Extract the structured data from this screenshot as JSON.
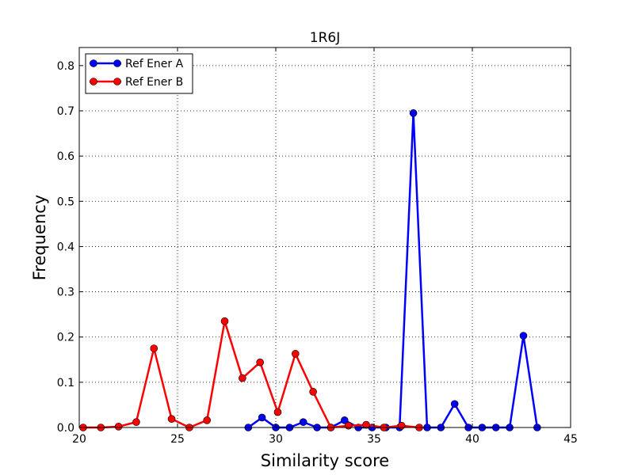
{
  "chart_data": {
    "type": "line",
    "title": "1R6J",
    "xlabel": "Similarity score",
    "ylabel": "Frequency",
    "xlim": [
      20,
      45
    ],
    "ylim": [
      0,
      0.84
    ],
    "xticks": [
      20,
      25,
      30,
      35,
      40,
      45
    ],
    "yticks": [
      0.0,
      0.1,
      0.2,
      0.3,
      0.4,
      0.5,
      0.6,
      0.7,
      0.8
    ],
    "xtick_labels": [
      "20",
      "25",
      "30",
      "35",
      "40",
      "45"
    ],
    "ytick_labels": [
      "0.0",
      "0.1",
      "0.2",
      "0.3",
      "0.4",
      "0.5",
      "0.6",
      "0.7",
      "0.8"
    ],
    "grid": true,
    "legend_position": "top-left",
    "series": [
      {
        "name": "Ref Ener A",
        "color": "#0000ff",
        "x": [
          28.6,
          29.3,
          30.0,
          30.7,
          31.4,
          32.1,
          32.8,
          33.5,
          34.2,
          34.9,
          35.6,
          36.3,
          37.0,
          37.7,
          38.4,
          39.1,
          39.8,
          40.5,
          41.2,
          41.9,
          42.6,
          43.3
        ],
        "y": [
          0.0,
          0.022,
          0.0,
          0.0,
          0.012,
          0.0,
          0.0,
          0.016,
          0.0,
          0.0,
          0.0,
          0.0,
          0.695,
          0.0,
          0.0,
          0.052,
          0.0,
          0.0,
          0.0,
          0.0,
          0.203,
          0.0
        ]
      },
      {
        "name": "Ref Ener B",
        "color": "#ff0000",
        "x": [
          20.2,
          21.1,
          22.0,
          22.9,
          23.8,
          24.7,
          25.6,
          26.5,
          27.4,
          28.3,
          29.2,
          30.1,
          31.0,
          31.9,
          32.8,
          33.7,
          34.6,
          35.5,
          36.4,
          37.3
        ],
        "y": [
          0.0,
          0.0,
          0.002,
          0.012,
          0.175,
          0.019,
          0.0,
          0.016,
          0.235,
          0.109,
          0.144,
          0.034,
          0.163,
          0.079,
          0.0,
          0.004,
          0.006,
          0.0,
          0.004,
          0.0
        ]
      }
    ]
  }
}
